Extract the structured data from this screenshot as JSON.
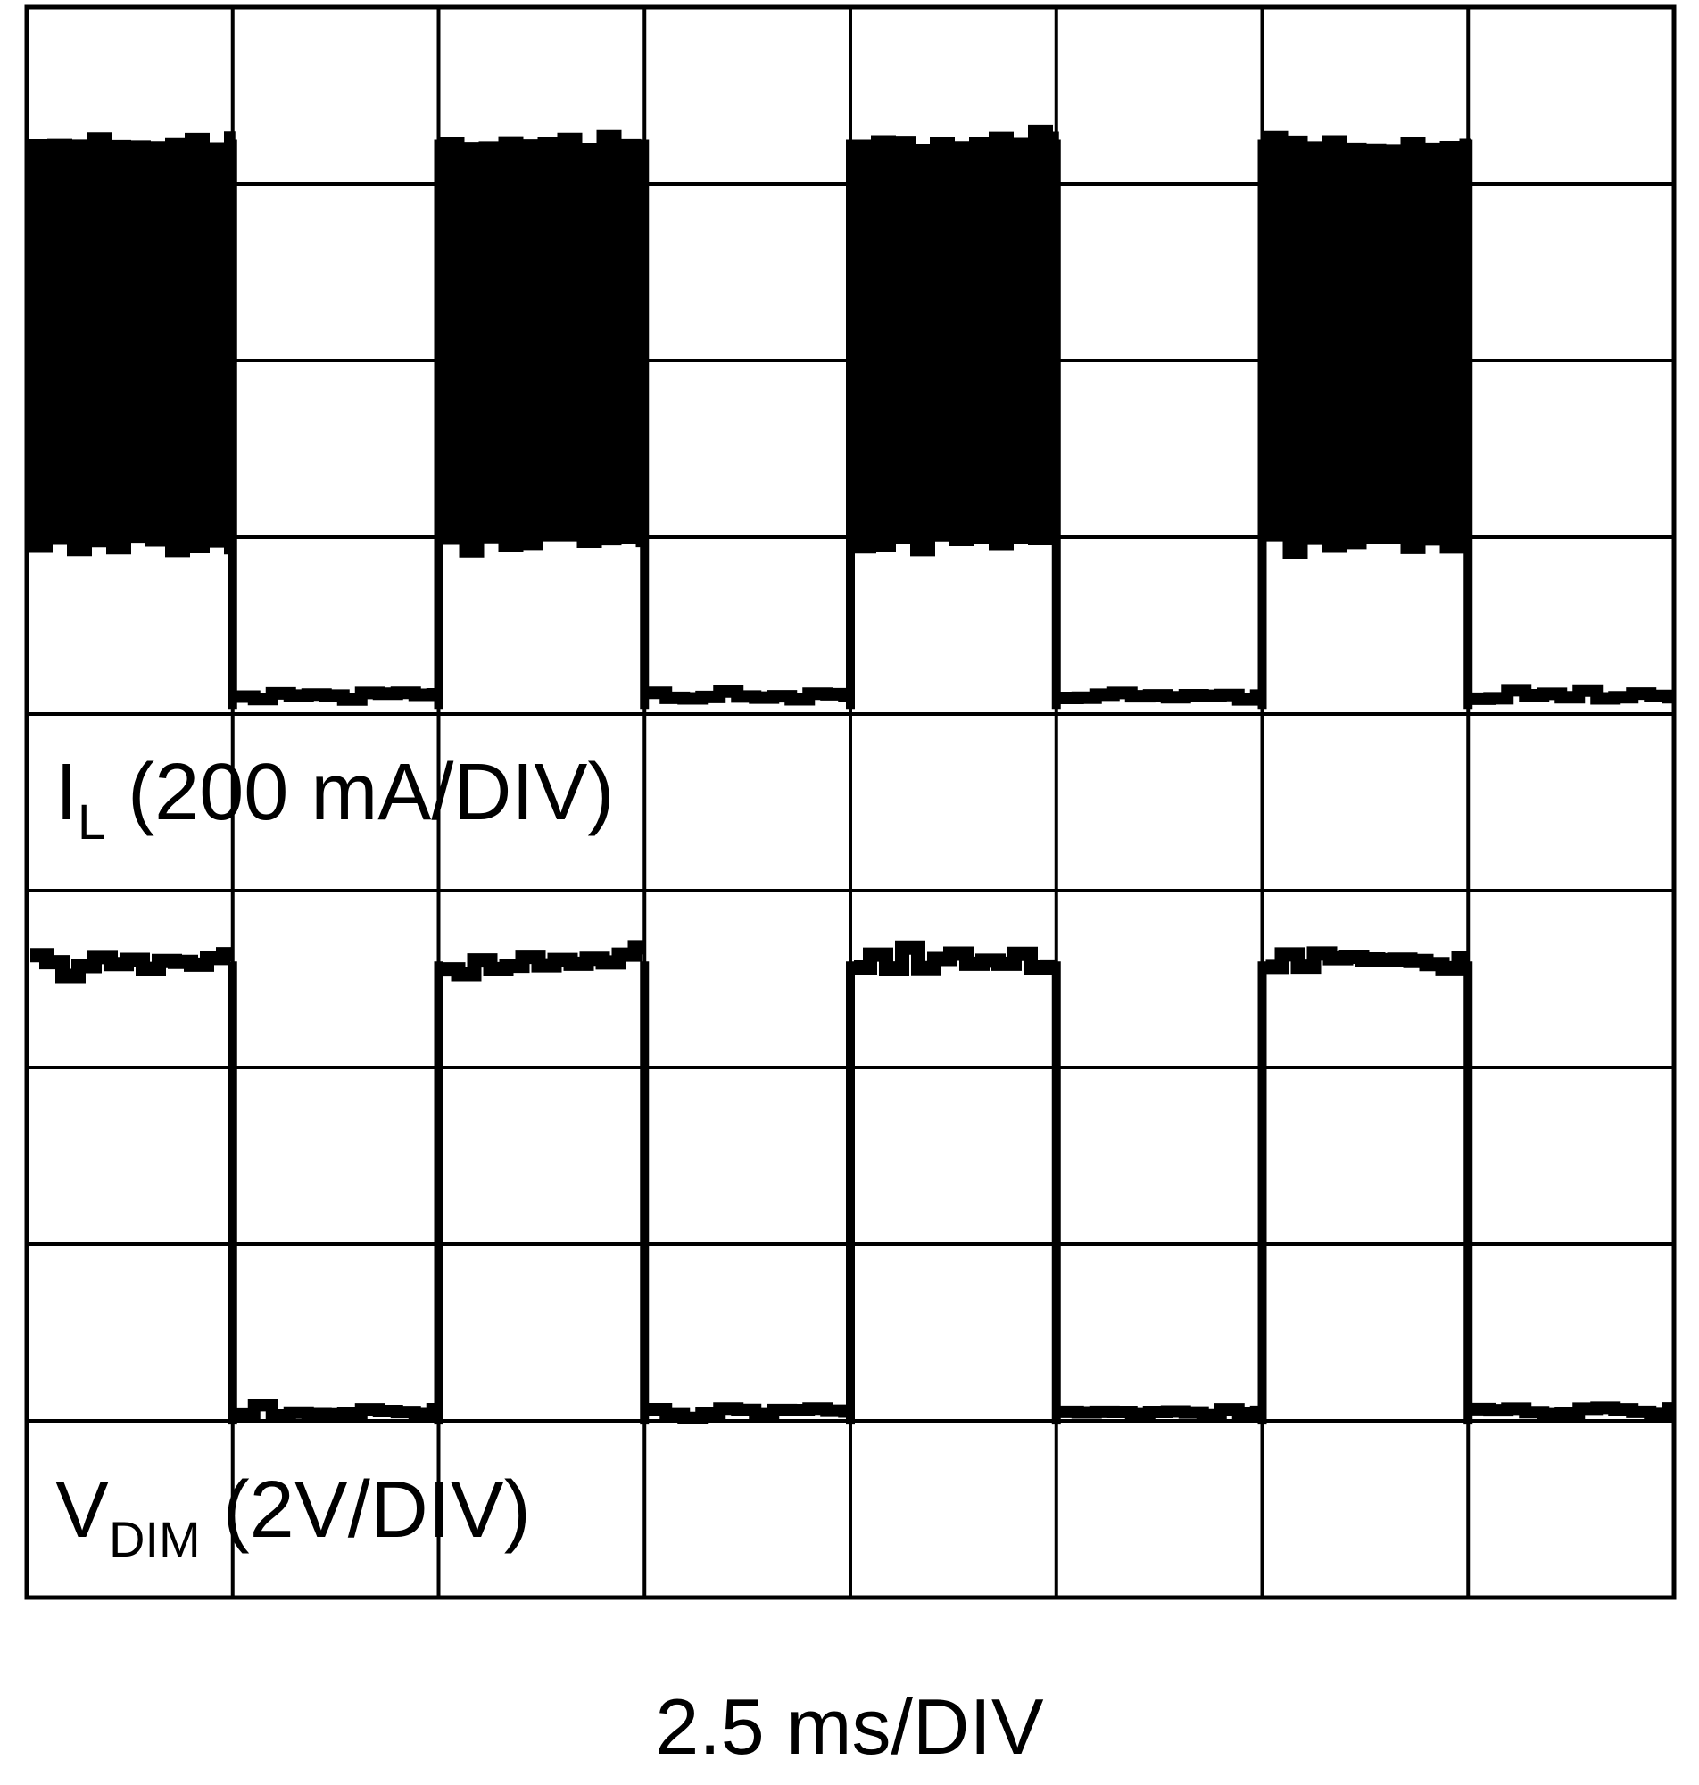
{
  "chart_data": {
    "type": "line",
    "title": "",
    "xlabel": "2.5 ms/DIV",
    "grid": true,
    "divisions": {
      "x": 8,
      "y": 9
    },
    "x_unit": "DIV",
    "channels": [
      {
        "name": "I_L",
        "label": {
          "main": "I",
          "sub": "L",
          "scale": " (200 mA/DIV)"
        },
        "high_div": 7.3,
        "high_band_div": [
          5.95,
          8.25
        ],
        "low_div": 5.1,
        "segments": [
          {
            "state": "high",
            "x": [
              0,
              1
            ]
          },
          {
            "state": "low",
            "x": [
              1,
              2
            ]
          },
          {
            "state": "high",
            "x": [
              2,
              3
            ]
          },
          {
            "state": "low",
            "x": [
              3,
              4
            ]
          },
          {
            "state": "high",
            "x": [
              4,
              5
            ]
          },
          {
            "state": "low",
            "x": [
              5,
              6
            ]
          },
          {
            "state": "high",
            "x": [
              6,
              7
            ]
          },
          {
            "state": "low",
            "x": [
              7,
              8
            ]
          }
        ]
      },
      {
        "name": "V_DIM",
        "label": {
          "main": "V",
          "sub": "DIM",
          "scale": " (2V/DIV)"
        },
        "high_div": 3.6,
        "low_div": 1.05,
        "segments": [
          {
            "state": "high",
            "x": [
              0,
              1
            ]
          },
          {
            "state": "low",
            "x": [
              1,
              2
            ]
          },
          {
            "state": "high",
            "x": [
              2,
              3
            ]
          },
          {
            "state": "low",
            "x": [
              3,
              4
            ]
          },
          {
            "state": "high",
            "x": [
              4,
              5
            ]
          },
          {
            "state": "low",
            "x": [
              5,
              6
            ]
          },
          {
            "state": "high",
            "x": [
              6,
              7
            ]
          },
          {
            "state": "low",
            "x": [
              7,
              8
            ]
          }
        ]
      }
    ]
  }
}
